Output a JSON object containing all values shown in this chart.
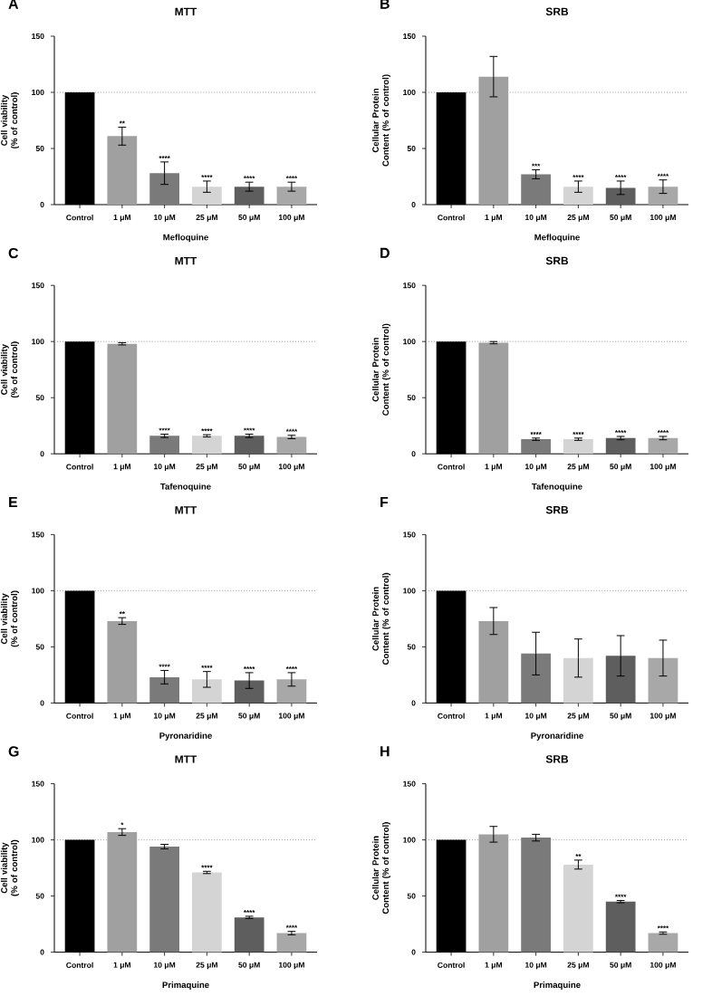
{
  "chart_data": [
    {
      "type": "bar",
      "title": "MTT",
      "xlabel": "Mefloquine",
      "ylabel": "Cell viability (% of control)",
      "categories": [
        "Control",
        "1 μM",
        "10 μM",
        "25 μM",
        "50 μM",
        "100 μM"
      ],
      "values": [
        100,
        61,
        28,
        16,
        16,
        16
      ],
      "errors": [
        null,
        8,
        10,
        5,
        4,
        4
      ],
      "colors": [
        "#000000",
        "#a0a0a0",
        "#7a7a7a",
        "#d4d4d4",
        "#5e5e5e",
        "#a8a8a8"
      ],
      "ylim": [
        0,
        150
      ],
      "yticks": [
        0,
        50,
        100,
        150
      ],
      "ref_lines": [
        {
          "axis": "y",
          "value": 100,
          "line_style": "dotted",
          "color": "#999999"
        }
      ],
      "annotations": [
        "A",
        {
          "text": "**",
          "x": "1 μM",
          "y": 69
        },
        {
          "text": "****",
          "x": "10 μM",
          "y": 38
        },
        {
          "text": "****",
          "x": "25 μM",
          "y": 21
        },
        {
          "text": "****",
          "x": "50 μM",
          "y": 20
        },
        {
          "text": "****",
          "x": "100 μM",
          "y": 20
        }
      ]
    },
    {
      "type": "bar",
      "title": "SRB",
      "xlabel": "Mefloquine",
      "ylabel": "Cellular Protein Content (% of control)",
      "categories": [
        "Control",
        "1 μM",
        "10 μM",
        "25 μM",
        "50 μM",
        "100 μM"
      ],
      "values": [
        100,
        114,
        27,
        16,
        15,
        16
      ],
      "errors": [
        null,
        18,
        4,
        5,
        6,
        6
      ],
      "colors": [
        "#000000",
        "#a0a0a0",
        "#7a7a7a",
        "#d4d4d4",
        "#5e5e5e",
        "#a8a8a8"
      ],
      "ylim": [
        0,
        150
      ],
      "yticks": [
        0,
        50,
        100,
        150
      ],
      "ref_lines": [
        {
          "axis": "y",
          "value": 100,
          "line_style": "dotted",
          "color": "#999999"
        }
      ],
      "annotations": [
        "B",
        {
          "text": "***",
          "x": "10 μM",
          "y": 31
        },
        {
          "text": "****",
          "x": "25 μM",
          "y": 21
        },
        {
          "text": "****",
          "x": "50 μM",
          "y": 21
        },
        {
          "text": "****",
          "x": "100 μM",
          "y": 22
        }
      ]
    },
    {
      "type": "bar",
      "title": "MTT",
      "xlabel": "Tafenoquine",
      "ylabel": "Cell viability (% of control)",
      "categories": [
        "Control",
        "1 μM",
        "10 μM",
        "25 μM",
        "50 μM",
        "100 μM"
      ],
      "values": [
        100,
        98,
        16,
        16,
        16,
        15
      ],
      "errors": [
        null,
        1,
        1.5,
        1,
        1.5,
        1.5
      ],
      "colors": [
        "#000000",
        "#a0a0a0",
        "#7a7a7a",
        "#d4d4d4",
        "#5e5e5e",
        "#a8a8a8"
      ],
      "ylim": [
        0,
        150
      ],
      "yticks": [
        0,
        50,
        100,
        150
      ],
      "ref_lines": [
        {
          "axis": "y",
          "value": 100,
          "line_style": "dotted",
          "color": "#999999"
        }
      ],
      "annotations": [
        "C",
        {
          "text": "****",
          "x": "10 μM",
          "y": 17.5
        },
        {
          "text": "****",
          "x": "25 μM",
          "y": 17
        },
        {
          "text": "****",
          "x": "50 μM",
          "y": 17.5
        },
        {
          "text": "****",
          "x": "100 μM",
          "y": 16.5
        }
      ]
    },
    {
      "type": "bar",
      "title": "SRB",
      "xlabel": "Tafenoquine",
      "ylabel": "Cellular Protein Content (% of control)",
      "categories": [
        "Control",
        "1 μM",
        "10 μM",
        "25 μM",
        "50 μM",
        "100 μM"
      ],
      "values": [
        100,
        99,
        13,
        13,
        14,
        14
      ],
      "errors": [
        null,
        1,
        1,
        1,
        1.5,
        1.5
      ],
      "colors": [
        "#000000",
        "#a0a0a0",
        "#7a7a7a",
        "#d4d4d4",
        "#5e5e5e",
        "#a8a8a8"
      ],
      "ylim": [
        0,
        150
      ],
      "yticks": [
        0,
        50,
        100,
        150
      ],
      "ref_lines": [
        {
          "axis": "y",
          "value": 100,
          "line_style": "dotted",
          "color": "#999999"
        }
      ],
      "annotations": [
        "D",
        {
          "text": "****",
          "x": "10 μM",
          "y": 14
        },
        {
          "text": "****",
          "x": "25 μM",
          "y": 14
        },
        {
          "text": "****",
          "x": "50 μM",
          "y": 15.5
        },
        {
          "text": "****",
          "x": "100 μM",
          "y": 15.5
        }
      ]
    },
    {
      "type": "bar",
      "title": "MTT",
      "xlabel": "Pyronaridine",
      "ylabel": "Cell viability (% of control)",
      "categories": [
        "Control",
        "1 μM",
        "10 μM",
        "25 μM",
        "50 μM",
        "100 μM"
      ],
      "values": [
        100,
        73,
        23,
        21,
        20,
        21
      ],
      "errors": [
        null,
        3,
        6,
        7,
        7,
        6
      ],
      "colors": [
        "#000000",
        "#a0a0a0",
        "#7a7a7a",
        "#d4d4d4",
        "#5e5e5e",
        "#a8a8a8"
      ],
      "ylim": [
        0,
        150
      ],
      "yticks": [
        0,
        50,
        100,
        150
      ],
      "ref_lines": [
        {
          "axis": "y",
          "value": 100,
          "line_style": "dotted",
          "color": "#999999"
        }
      ],
      "annotations": [
        "E",
        {
          "text": "**",
          "x": "1 μM",
          "y": 76
        },
        {
          "text": "****",
          "x": "10 μM",
          "y": 29
        },
        {
          "text": "****",
          "x": "25 μM",
          "y": 28
        },
        {
          "text": "****",
          "x": "50 μM",
          "y": 27
        },
        {
          "text": "****",
          "x": "100 μM",
          "y": 27
        }
      ]
    },
    {
      "type": "bar",
      "title": "SRB",
      "xlabel": "Pyronaridine",
      "ylabel": "Cellular Protein Content (% of control)",
      "categories": [
        "Control",
        "1 μM",
        "10 μM",
        "25 μM",
        "50 μM",
        "100 μM"
      ],
      "values": [
        100,
        73,
        44,
        40,
        42,
        40
      ],
      "errors": [
        null,
        12,
        19,
        17,
        18,
        16
      ],
      "colors": [
        "#000000",
        "#a0a0a0",
        "#7a7a7a",
        "#d4d4d4",
        "#5e5e5e",
        "#a8a8a8"
      ],
      "ylim": [
        0,
        150
      ],
      "yticks": [
        0,
        50,
        100,
        150
      ],
      "ref_lines": [
        {
          "axis": "y",
          "value": 100,
          "line_style": "dotted",
          "color": "#999999"
        }
      ],
      "annotations": [
        "F"
      ]
    },
    {
      "type": "bar",
      "title": "MTT",
      "xlabel": "Primaquine",
      "ylabel": "Cell viability (% of control)",
      "categories": [
        "Control",
        "1 μM",
        "10 μM",
        "25 μM",
        "50 μM",
        "100 μM"
      ],
      "values": [
        100,
        107,
        94,
        71,
        31,
        17
      ],
      "errors": [
        null,
        3,
        2,
        1,
        1,
        1.5
      ],
      "colors": [
        "#000000",
        "#a0a0a0",
        "#7a7a7a",
        "#d4d4d4",
        "#5e5e5e",
        "#a8a8a8"
      ],
      "ylim": [
        0,
        150
      ],
      "yticks": [
        0,
        50,
        100,
        150
      ],
      "ref_lines": [
        {
          "axis": "y",
          "value": 100,
          "line_style": "dotted",
          "color": "#999999"
        }
      ],
      "annotations": [
        "G",
        {
          "text": "*",
          "x": "1 μM",
          "y": 110
        },
        {
          "text": "****",
          "x": "25 μM",
          "y": 72
        },
        {
          "text": "****",
          "x": "50 μM",
          "y": 32
        },
        {
          "text": "****",
          "x": "100 μM",
          "y": 18.5
        }
      ]
    },
    {
      "type": "bar",
      "title": "SRB",
      "xlabel": "Primaquine",
      "ylabel": "Cellular Protein Content (% of control)",
      "categories": [
        "Control",
        "1 μM",
        "10 μM",
        "25 μM",
        "50 μM",
        "100 μM"
      ],
      "values": [
        100,
        105,
        102,
        78,
        45,
        17
      ],
      "errors": [
        null,
        7,
        3,
        4,
        1,
        1
      ],
      "colors": [
        "#000000",
        "#a0a0a0",
        "#7a7a7a",
        "#d4d4d4",
        "#5e5e5e",
        "#a8a8a8"
      ],
      "ylim": [
        0,
        150
      ],
      "yticks": [
        0,
        50,
        100,
        150
      ],
      "ref_lines": [
        {
          "axis": "y",
          "value": 100,
          "line_style": "dotted",
          "color": "#999999"
        }
      ],
      "annotations": [
        "H",
        {
          "text": "**",
          "x": "25 μM",
          "y": 82
        },
        {
          "text": "****",
          "x": "50 μM",
          "y": 46
        },
        {
          "text": "****",
          "x": "100 μM",
          "y": 18
        }
      ]
    }
  ]
}
